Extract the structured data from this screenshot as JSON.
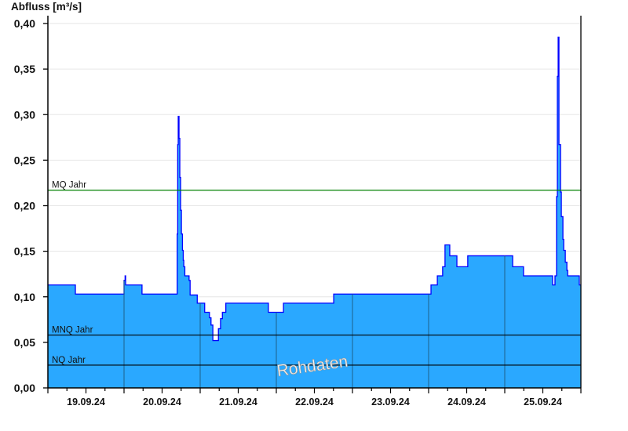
{
  "chart_data": {
    "type": "area",
    "ylabel": "Abfluss [m³/s]",
    "ylim": [
      0,
      0.4
    ],
    "yticks": [
      "0,00",
      "0,05",
      "0,10",
      "0,15",
      "0,20",
      "0,25",
      "0,30",
      "0,35",
      "0,40"
    ],
    "xlim": [
      "19.09.24 00:00",
      "26.09.24 00:00"
    ],
    "xticks": [
      "19.09.24",
      "20.09.24",
      "21.09.24",
      "22.09.24",
      "23.09.24",
      "24.09.24",
      "25.09.24"
    ],
    "grid": true,
    "watermark": "Rohdaten",
    "colors": {
      "fill": "#2aa8ff",
      "line": "#0000ff",
      "mq": "#008000",
      "ref": "#000000",
      "grid": "#e6e6e6",
      "daygrid": "#1f5f8a"
    },
    "reference_lines": [
      {
        "label": "MQ Jahr",
        "value": 0.217
      },
      {
        "label": "MNQ Jahr",
        "value": 0.058
      },
      {
        "label": "NQ Jahr",
        "value": 0.025
      }
    ],
    "series": [
      {
        "step": true,
        "points": [
          [
            "19.09.24 00:00",
            0.113
          ],
          [
            "19.09.24 08:40",
            0.103
          ],
          [
            "20.09.24 00:00",
            0.118
          ],
          [
            "20.09.24 00:20",
            0.123
          ],
          [
            "20.09.24 00:30",
            0.113
          ],
          [
            "20.09.24 05:40",
            0.103
          ],
          [
            "20.09.24 16:45",
            0.169
          ],
          [
            "20.09.24 16:55",
            0.267
          ],
          [
            "20.09.24 17:05",
            0.298
          ],
          [
            "20.09.24 17:20",
            0.274
          ],
          [
            "20.09.24 17:35",
            0.231
          ],
          [
            "20.09.24 17:50",
            0.195
          ],
          [
            "20.09.24 18:05",
            0.169
          ],
          [
            "20.09.24 18:25",
            0.151
          ],
          [
            "20.09.24 18:40",
            0.14
          ],
          [
            "20.09.24 18:50",
            0.133
          ],
          [
            "20.09.24 19:10",
            0.123
          ],
          [
            "20.09.24 20:30",
            0.118
          ],
          [
            "20.09.24 20:50",
            0.102
          ],
          [
            "20.09.24 23:05",
            0.093
          ],
          [
            "21.09.24 01:25",
            0.083
          ],
          [
            "21.09.24 02:55",
            0.077
          ],
          [
            "21.09.24 03:25",
            0.069
          ],
          [
            "21.09.24 04:00",
            0.052
          ],
          [
            "21.09.24 05:45",
            0.065
          ],
          [
            "21.09.24 06:25",
            0.076
          ],
          [
            "21.09.24 07:00",
            0.083
          ],
          [
            "21.09.24 08:05",
            0.093
          ],
          [
            "21.09.24 21:30",
            0.083
          ],
          [
            "22.09.24 02:15",
            0.093
          ],
          [
            "22.09.24 18:05",
            0.103
          ],
          [
            "24.09.24 00:45",
            0.113
          ],
          [
            "24.09.24 02:45",
            0.123
          ],
          [
            "24.09.24 04:25",
            0.133
          ],
          [
            "24.09.24 05:10",
            0.157
          ],
          [
            "24.09.24 06:40",
            0.145
          ],
          [
            "24.09.24 08:55",
            0.133
          ],
          [
            "24.09.24 12:20",
            0.145
          ],
          [
            "25.09.24 02:30",
            0.133
          ],
          [
            "25.09.24 05:55",
            0.123
          ],
          [
            "25.09.24 15:05",
            0.113
          ],
          [
            "25.09.24 15:50",
            0.123
          ],
          [
            "25.09.24 16:20",
            0.21
          ],
          [
            "25.09.24 16:35",
            0.342
          ],
          [
            "25.09.24 16:50",
            0.385
          ],
          [
            "25.09.24 17:05",
            0.267
          ],
          [
            "25.09.24 17:35",
            0.215
          ],
          [
            "25.09.24 17:50",
            0.188
          ],
          [
            "25.09.24 18:20",
            0.163
          ],
          [
            "25.09.24 18:35",
            0.151
          ],
          [
            "25.09.24 19:05",
            0.138
          ],
          [
            "25.09.24 19:35",
            0.129
          ],
          [
            "25.09.24 19:50",
            0.123
          ],
          [
            "25.09.24 23:30",
            0.113
          ]
        ]
      }
    ]
  }
}
